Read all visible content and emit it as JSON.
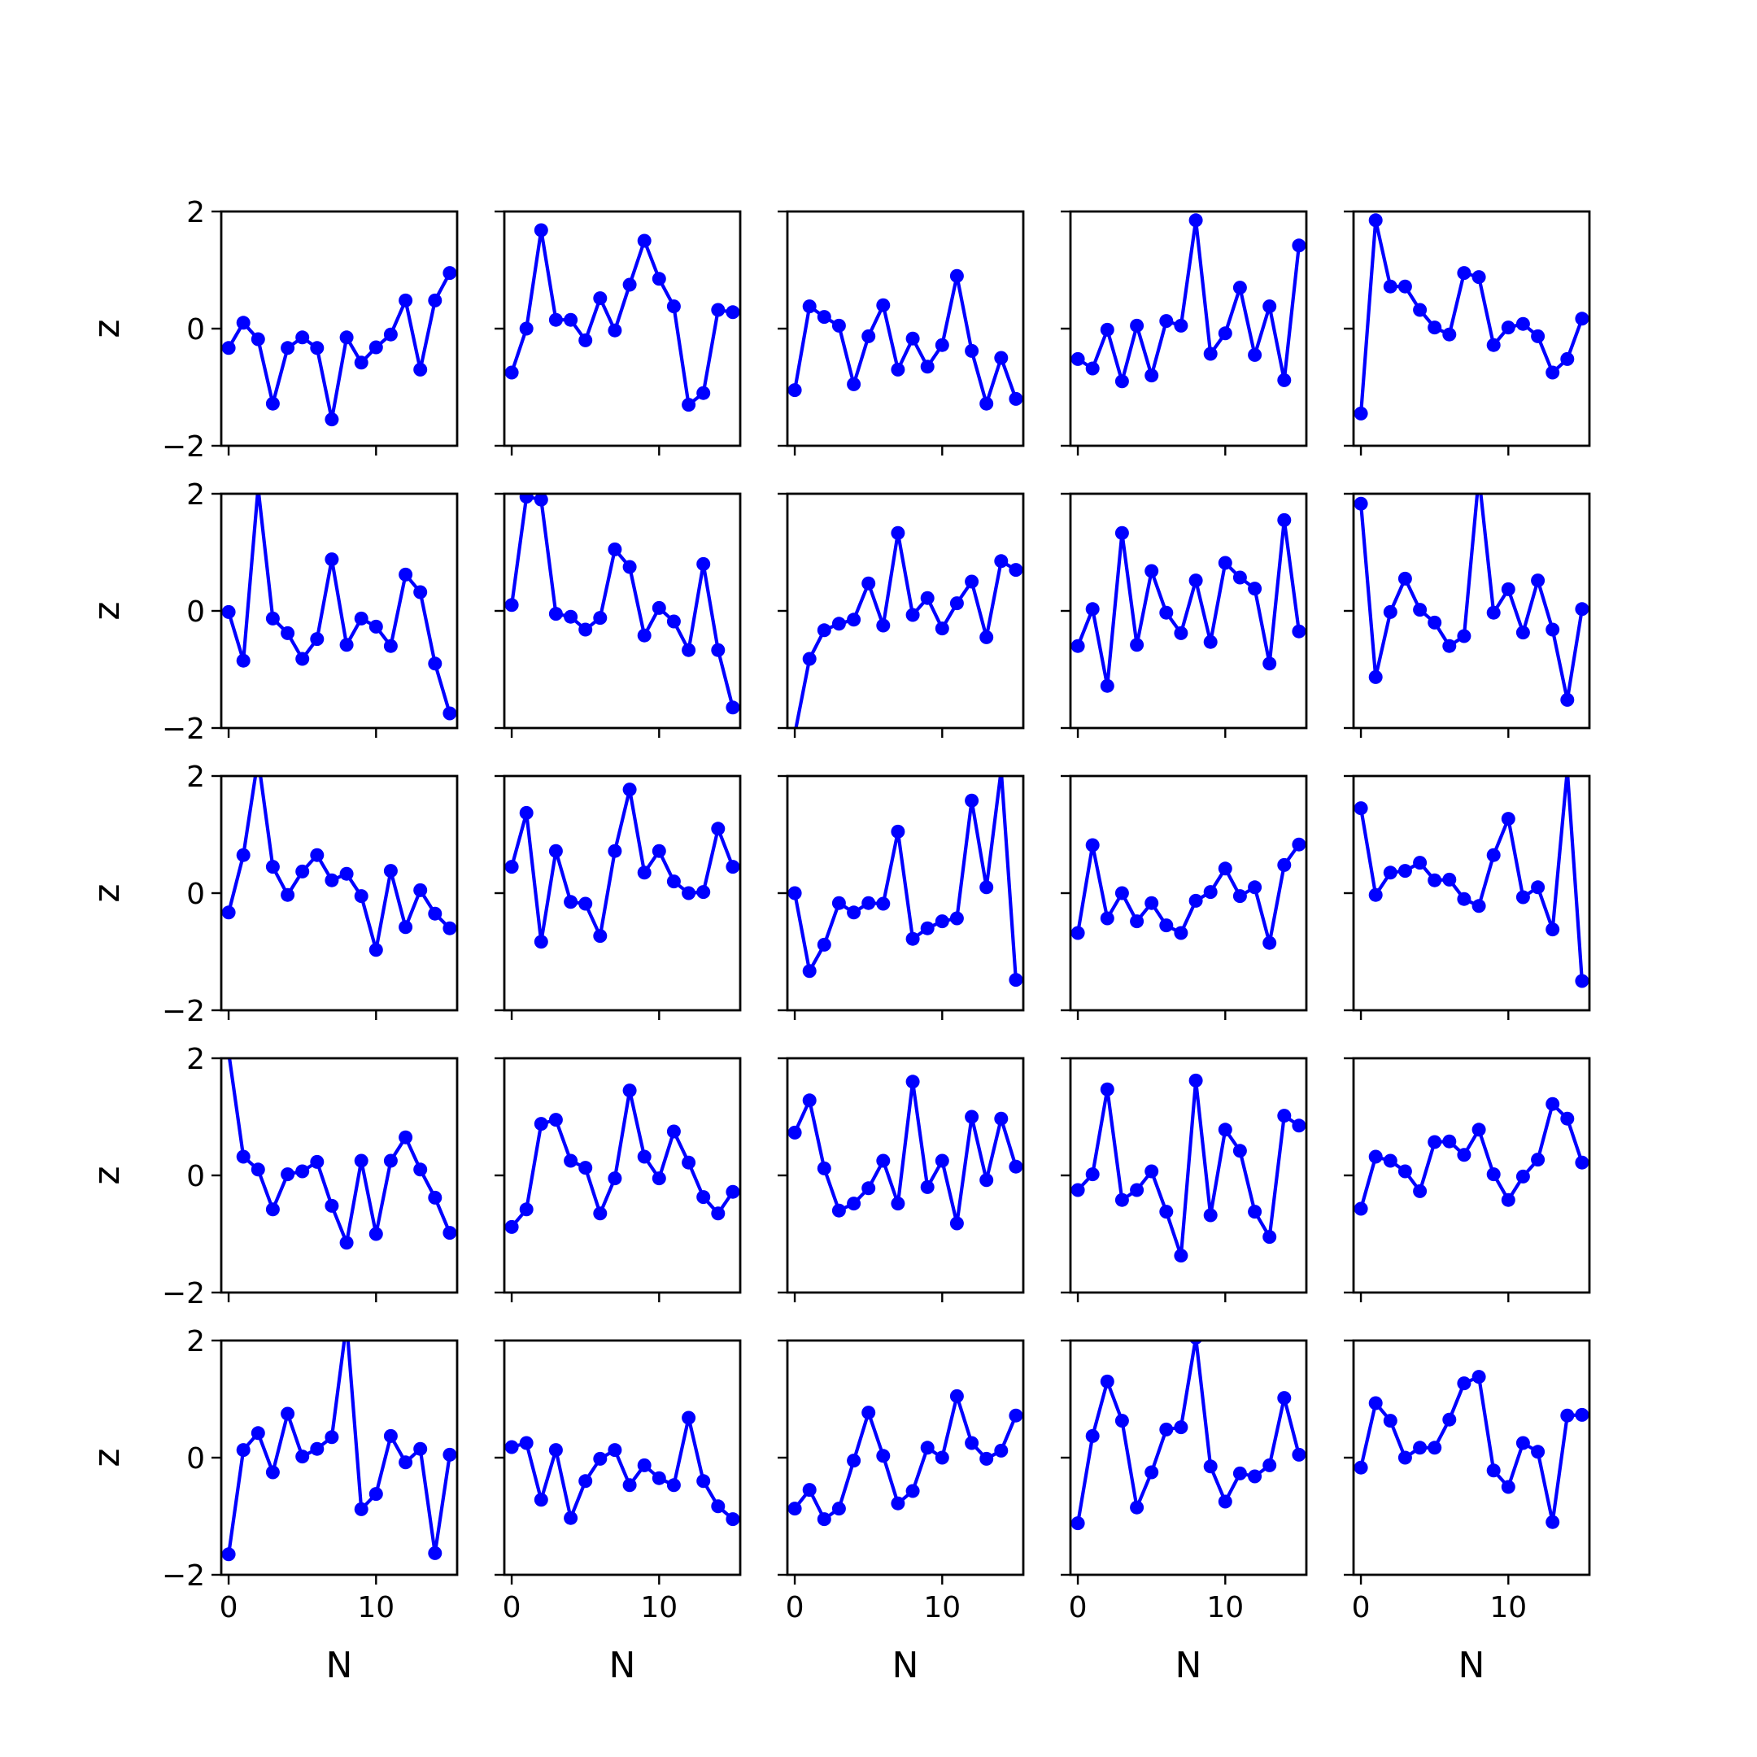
{
  "chart_data": {
    "type": "line",
    "grid": "5x5 subplots, shared x and y axes",
    "xlabel": "N",
    "ylabel": "z",
    "xlim": [
      -0.5,
      15.5
    ],
    "ylim": [
      -2,
      2
    ],
    "xticks": [
      0,
      10
    ],
    "yticks": [
      -2,
      0,
      2
    ],
    "line_color": "#0000ff",
    "marker": "circle",
    "x": [
      0,
      1,
      2,
      3,
      4,
      5,
      6,
      7,
      8,
      9,
      10,
      11,
      12,
      13,
      14,
      15
    ],
    "panels": [
      [
        -0.33,
        0.1,
        -0.18,
        -1.28,
        -0.33,
        -0.15,
        -0.33,
        -1.55,
        -0.15,
        -0.58,
        -0.32,
        -0.1,
        0.48,
        -0.7,
        0.48,
        0.95
      ],
      [
        -0.75,
        0.0,
        1.68,
        0.15,
        0.15,
        -0.2,
        0.52,
        -0.03,
        0.75,
        1.5,
        0.85,
        0.38,
        -1.3,
        -1.1,
        0.32,
        0.28
      ],
      [
        -1.05,
        0.38,
        0.2,
        0.05,
        -0.95,
        -0.13,
        0.4,
        -0.7,
        -0.17,
        -0.65,
        -0.28,
        0.9,
        -0.38,
        -1.28,
        -0.5,
        -1.2
      ],
      [
        -0.52,
        -0.68,
        -0.02,
        -0.9,
        0.05,
        -0.8,
        0.13,
        0.05,
        1.85,
        -0.43,
        -0.08,
        0.7,
        -0.45,
        0.38,
        -0.88,
        1.42
      ],
      [
        -1.45,
        1.85,
        0.72,
        0.72,
        0.32,
        0.02,
        -0.1,
        0.95,
        0.88,
        -0.28,
        0.02,
        0.08,
        -0.13,
        -0.75,
        -0.52,
        0.17
      ],
      [
        -0.02,
        -0.85,
        2.1,
        -0.13,
        -0.38,
        -0.82,
        -0.48,
        0.88,
        -0.58,
        -0.13,
        -0.27,
        -0.6,
        0.62,
        0.32,
        -0.9,
        -1.75
      ],
      [
        0.1,
        1.95,
        1.9,
        -0.05,
        -0.1,
        -0.32,
        -0.12,
        1.05,
        0.75,
        -0.42,
        0.05,
        -0.18,
        -0.67,
        0.8,
        -0.67,
        -1.65
      ],
      [
        -2.1,
        -0.82,
        -0.33,
        -0.22,
        -0.15,
        0.47,
        -0.25,
        1.33,
        -0.07,
        0.22,
        -0.3,
        0.13,
        0.5,
        -0.45,
        0.85,
        0.7
      ],
      [
        -0.6,
        0.03,
        -1.28,
        1.33,
        -0.58,
        0.68,
        -0.03,
        -0.38,
        0.52,
        -0.53,
        0.82,
        0.57,
        0.38,
        -0.9,
        1.55,
        -0.35
      ],
      [
        1.83,
        -1.13,
        -0.02,
        0.55,
        0.02,
        -0.2,
        -0.6,
        -0.43,
        2.3,
        -0.03,
        0.37,
        -0.37,
        0.52,
        -0.32,
        -1.52,
        0.03
      ],
      [
        -0.33,
        0.65,
        2.3,
        0.45,
        -0.03,
        0.37,
        0.65,
        0.22,
        0.33,
        -0.05,
        -0.97,
        0.38,
        -0.58,
        0.05,
        -0.35,
        -0.6
      ],
      [
        0.45,
        1.37,
        -0.83,
        0.72,
        -0.15,
        -0.18,
        -0.73,
        0.72,
        1.77,
        0.35,
        0.72,
        0.2,
        0.0,
        0.02,
        1.1,
        0.45
      ],
      [
        0.0,
        -1.33,
        -0.88,
        -0.17,
        -0.33,
        -0.17,
        -0.18,
        1.05,
        -0.78,
        -0.6,
        -0.48,
        -0.43,
        1.58,
        0.1,
        2.1,
        -1.48
      ],
      [
        -0.68,
        0.82,
        -0.43,
        0.0,
        -0.48,
        -0.17,
        -0.55,
        -0.68,
        -0.13,
        0.02,
        0.42,
        -0.05,
        0.1,
        -0.85,
        0.48,
        0.83
      ],
      [
        1.45,
        -0.03,
        0.35,
        0.38,
        0.52,
        0.22,
        0.23,
        -0.1,
        -0.22,
        0.65,
        1.27,
        -0.07,
        0.1,
        -0.62,
        2.1,
        -1.5
      ],
      [
        2.1,
        0.32,
        0.1,
        -0.58,
        0.02,
        0.07,
        0.23,
        -0.52,
        -1.15,
        0.25,
        -1.0,
        0.25,
        0.65,
        0.1,
        -0.38,
        -0.98
      ],
      [
        -0.88,
        -0.58,
        0.88,
        0.95,
        0.25,
        0.13,
        -0.65,
        -0.05,
        1.45,
        0.32,
        -0.05,
        0.75,
        0.22,
        -0.37,
        -0.65,
        -0.28
      ],
      [
        0.73,
        1.28,
        0.12,
        -0.6,
        -0.48,
        -0.22,
        0.25,
        -0.48,
        1.6,
        -0.2,
        0.25,
        -0.82,
        1.0,
        -0.08,
        0.97,
        0.15
      ],
      [
        -0.25,
        0.02,
        1.47,
        -0.42,
        -0.25,
        0.07,
        -0.62,
        -1.37,
        1.62,
        -0.68,
        0.78,
        0.42,
        -0.62,
        -1.05,
        1.02,
        0.85
      ],
      [
        -0.57,
        0.32,
        0.25,
        0.07,
        -0.27,
        0.57,
        0.58,
        0.35,
        0.78,
        0.02,
        -0.42,
        -0.02,
        0.27,
        1.22,
        0.97,
        0.22
      ],
      [
        -1.65,
        0.13,
        0.42,
        -0.25,
        0.75,
        0.02,
        0.15,
        0.35,
        2.3,
        -0.88,
        -0.62,
        0.37,
        -0.08,
        0.15,
        -1.63,
        0.05
      ],
      [
        0.18,
        0.25,
        -0.72,
        0.13,
        -1.03,
        -0.4,
        -0.02,
        0.13,
        -0.47,
        -0.13,
        -0.35,
        -0.47,
        0.68,
        -0.4,
        -0.83,
        -1.05
      ],
      [
        -0.87,
        -0.55,
        -1.05,
        -0.87,
        -0.05,
        0.77,
        0.03,
        -0.78,
        -0.57,
        0.17,
        0.0,
        1.05,
        0.25,
        -0.02,
        0.12,
        0.72
      ],
      [
        -1.12,
        0.37,
        1.3,
        0.63,
        -0.85,
        -0.25,
        0.48,
        0.52,
        2.05,
        -0.15,
        -0.75,
        -0.27,
        -0.32,
        -0.13,
        1.02,
        0.05
      ],
      [
        -0.17,
        0.93,
        0.63,
        0.0,
        0.17,
        0.17,
        0.65,
        1.27,
        1.38,
        -0.22,
        -0.5,
        0.25,
        0.1,
        -1.1,
        0.72,
        0.73
      ]
    ]
  }
}
